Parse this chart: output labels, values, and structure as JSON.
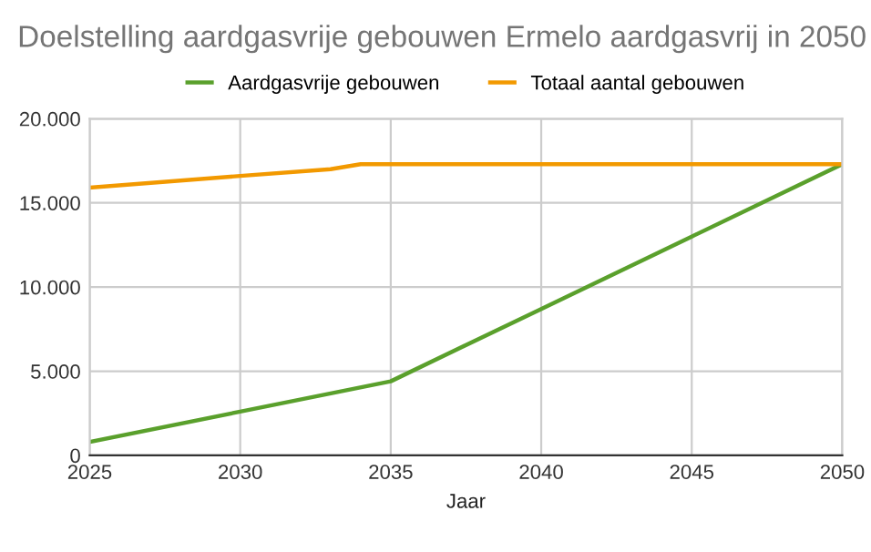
{
  "chart_data": {
    "type": "line",
    "title": "Doelstelling aardgasvrije gebouwen Ermelo aardgasvrij in 2050",
    "xlabel": "Jaar",
    "series": [
      {
        "name": "Aardgasvrije gebouwen",
        "color": "#5aa02c",
        "x": [
          2025,
          2030,
          2035,
          2040,
          2045,
          2050
        ],
        "values": [
          800,
          2600,
          4400,
          8700,
          13000,
          17300
        ]
      },
      {
        "name": "Totaal aantal gebouwen",
        "color": "#f29900",
        "x": [
          2025,
          2030,
          2033,
          2034,
          2040,
          2045,
          2050
        ],
        "values": [
          15900,
          16600,
          17000,
          17300,
          17300,
          17300,
          17300
        ]
      }
    ],
    "xlim": [
      2025,
      2050
    ],
    "xticks": [
      2025,
      2030,
      2035,
      2040,
      2045,
      2050
    ],
    "ylim": [
      0,
      20000
    ],
    "yticks": [
      {
        "value": 0,
        "label": "0"
      },
      {
        "value": 5000,
        "label": "5.000"
      },
      {
        "value": 10000,
        "label": "10.000"
      },
      {
        "value": 15000,
        "label": "15.000"
      },
      {
        "value": 20000,
        "label": "20.000"
      }
    ],
    "grid": true,
    "legend": "top",
    "marker": "none",
    "line_style": "solid"
  }
}
